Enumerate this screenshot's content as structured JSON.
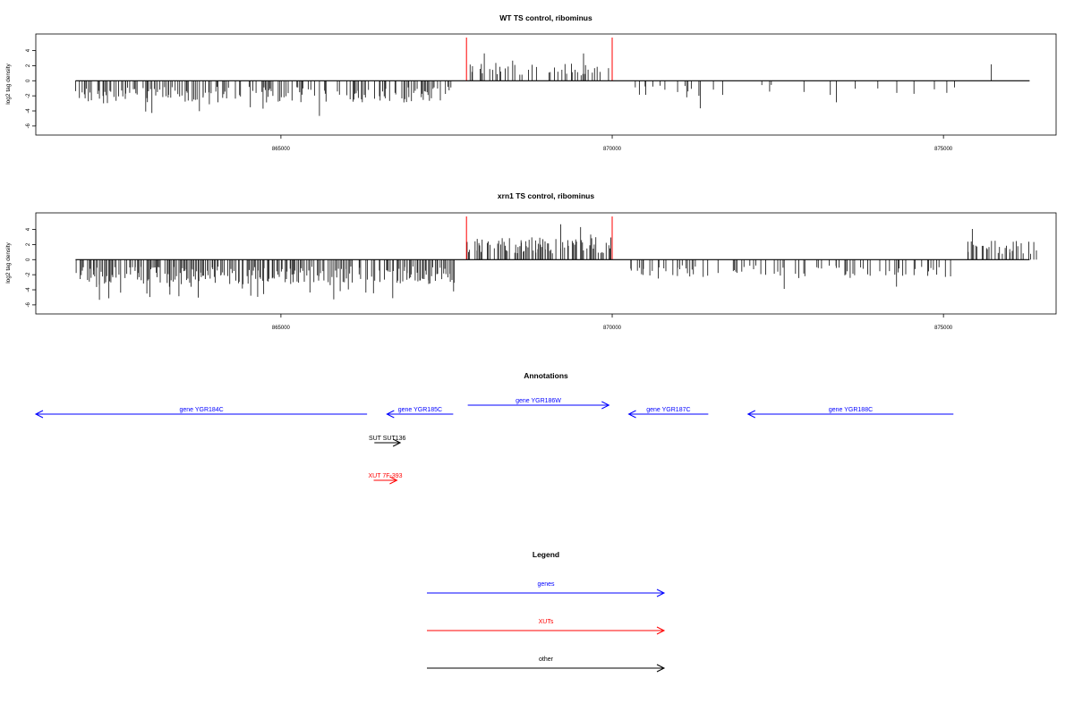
{
  "chart_data": [
    {
      "type": "bar",
      "title": "WT TS control, ribominus",
      "xlabel": "",
      "ylabel": "log2 tag density",
      "xlim": [
        861300,
        876700
      ],
      "ylim": [
        -7.2,
        6.2
      ],
      "xticks": [
        865000,
        870000,
        875000
      ],
      "xtick_labels": [
        "865000",
        "870000",
        "875000"
      ],
      "yticks": [
        -6,
        -4,
        -2,
        0,
        2,
        4
      ],
      "ytick_labels": [
        "-6",
        "-4",
        "-2",
        "0",
        "2",
        "4"
      ],
      "markers": [
        867800,
        870000
      ],
      "marker_color": "#ff0000",
      "grid": false,
      "seed": 11,
      "segments": [
        {
          "from": 861900,
          "to": 867620,
          "sign": -1,
          "density": 0.55,
          "scale": 2.3,
          "max": 5.5
        },
        {
          "from": 867830,
          "to": 870000,
          "sign": 1,
          "density": 0.35,
          "scale": 1.8,
          "max": 4.8
        },
        {
          "from": 870250,
          "to": 871500,
          "sign": -1,
          "density": 0.2,
          "scale": 1.8,
          "max": 3.8
        },
        {
          "from": 871500,
          "to": 875200,
          "sign": -1,
          "density": 0.05,
          "scale": 1.5,
          "max": 3.2
        },
        {
          "from": 875200,
          "to": 876300,
          "sign": 1,
          "density": 0.02,
          "scale": 2.0,
          "max": 3.0
        }
      ]
    },
    {
      "type": "bar",
      "title": "xrn1 TS control, ribominus",
      "xlabel": "",
      "ylabel": "log2 tag density",
      "xlim": [
        861300,
        876700
      ],
      "ylim": [
        -7.2,
        6.2
      ],
      "xticks": [
        865000,
        870000,
        875000
      ],
      "xtick_labels": [
        "865000",
        "870000",
        "875000"
      ],
      "yticks": [
        -6,
        -4,
        -2,
        0,
        2,
        4
      ],
      "ytick_labels": [
        "-6",
        "-4",
        "-2",
        "0",
        "2",
        "4"
      ],
      "markers": [
        867800,
        870000
      ],
      "marker_color": "#ff0000",
      "grid": false,
      "seed": 23,
      "segments": [
        {
          "from": 861900,
          "to": 867620,
          "sign": -1,
          "density": 0.7,
          "scale": 2.6,
          "max": 6.8
        },
        {
          "from": 867800,
          "to": 870000,
          "sign": 1,
          "density": 0.7,
          "scale": 2.4,
          "max": 5.0
        },
        {
          "from": 870250,
          "to": 871400,
          "sign": -1,
          "density": 0.35,
          "scale": 2.0,
          "max": 4.0
        },
        {
          "from": 871400,
          "to": 875100,
          "sign": -1,
          "density": 0.25,
          "scale": 2.0,
          "max": 5.8
        },
        {
          "from": 875300,
          "to": 876400,
          "sign": 1,
          "density": 0.45,
          "scale": 2.0,
          "max": 4.2
        }
      ]
    }
  ],
  "annotations": {
    "title": "Annotations",
    "xlim": [
      861300,
      876700
    ],
    "features": [
      {
        "label": "gene YGR184C",
        "start": 861300,
        "end": 866300,
        "strand": "-",
        "track": 0,
        "color": "#0000ff"
      },
      {
        "label": "gene YGR185C",
        "start": 866600,
        "end": 867600,
        "strand": "-",
        "track": 0,
        "color": "#0000ff"
      },
      {
        "label": "gene YGR186W",
        "start": 867820,
        "end": 869950,
        "strand": "+",
        "track": 1,
        "color": "#0000ff"
      },
      {
        "label": "gene YGR187C",
        "start": 870250,
        "end": 871450,
        "strand": "-",
        "track": 0,
        "color": "#0000ff"
      },
      {
        "label": "gene YGR188C",
        "start": 872050,
        "end": 875150,
        "strand": "-",
        "track": 0,
        "color": "#0000ff"
      },
      {
        "label": "SUT SUT136",
        "start": 866410,
        "end": 866800,
        "strand": "+",
        "track": 2,
        "color": "#000000"
      },
      {
        "label": "XUT 7F-393",
        "start": 866400,
        "end": 866750,
        "strand": "+",
        "track": 3,
        "color": "#ff0000"
      }
    ]
  },
  "legend": {
    "title": "Legend",
    "items": [
      {
        "label": "genes",
        "color": "#0000ff"
      },
      {
        "label": "XUTs",
        "color": "#ff0000"
      },
      {
        "label": "other",
        "color": "#000000"
      }
    ]
  }
}
